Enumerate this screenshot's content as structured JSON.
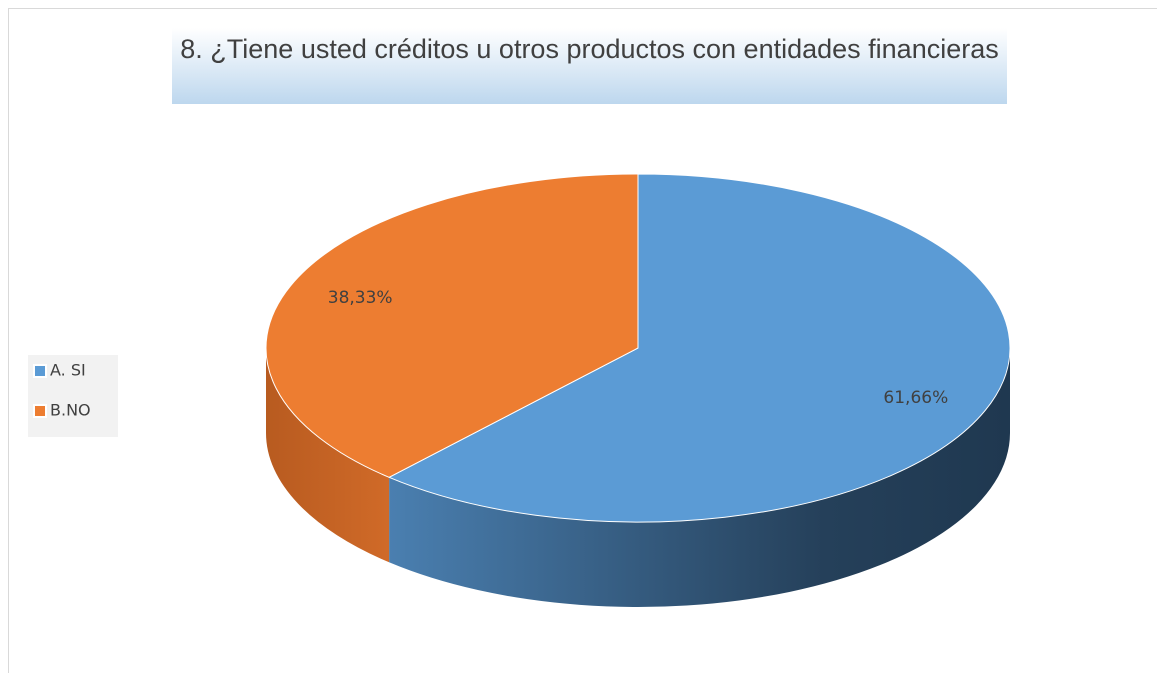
{
  "chart_data": {
    "type": "pie",
    "title": "8. ¿Tiene usted créditos u otros productos con entidades financieras",
    "categories": [
      "A. SI",
      "B.NO"
    ],
    "values": [
      61.66,
      38.33
    ],
    "value_labels": [
      "61,66%",
      "38,33%"
    ],
    "colors": [
      "#5b9bd5",
      "#ed7d31"
    ],
    "legend": "left"
  }
}
